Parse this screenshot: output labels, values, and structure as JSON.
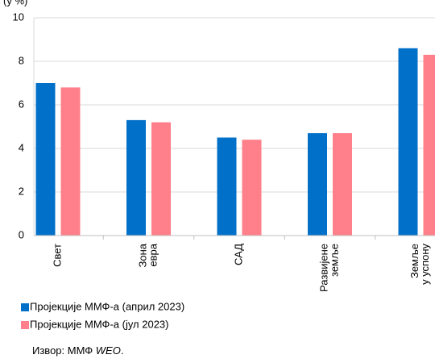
{
  "chart_data": {
    "type": "bar",
    "unit_label": "(у %)",
    "categories": [
      [
        "Свет"
      ],
      [
        "Зона",
        "евра"
      ],
      [
        "САД"
      ],
      [
        "Развијене",
        "земље"
      ],
      [
        "Земље",
        "у успону"
      ]
    ],
    "series": [
      {
        "name": "Пројекције ММФ-а (април 2023)",
        "color": "#0070c8",
        "values": [
          7.0,
          5.3,
          4.5,
          4.7,
          8.6
        ]
      },
      {
        "name": "Пројекције ММФ-а (јул 2023)",
        "color": "#ff7f8a",
        "values": [
          6.8,
          5.2,
          4.4,
          4.7,
          8.3
        ]
      }
    ],
    "ylim": [
      0,
      10
    ],
    "yticks": [
      0,
      2,
      4,
      6,
      8,
      10
    ],
    "grid": true,
    "source": {
      "text": "Извор: ММФ",
      "italic": "WEO",
      "end": "."
    }
  }
}
